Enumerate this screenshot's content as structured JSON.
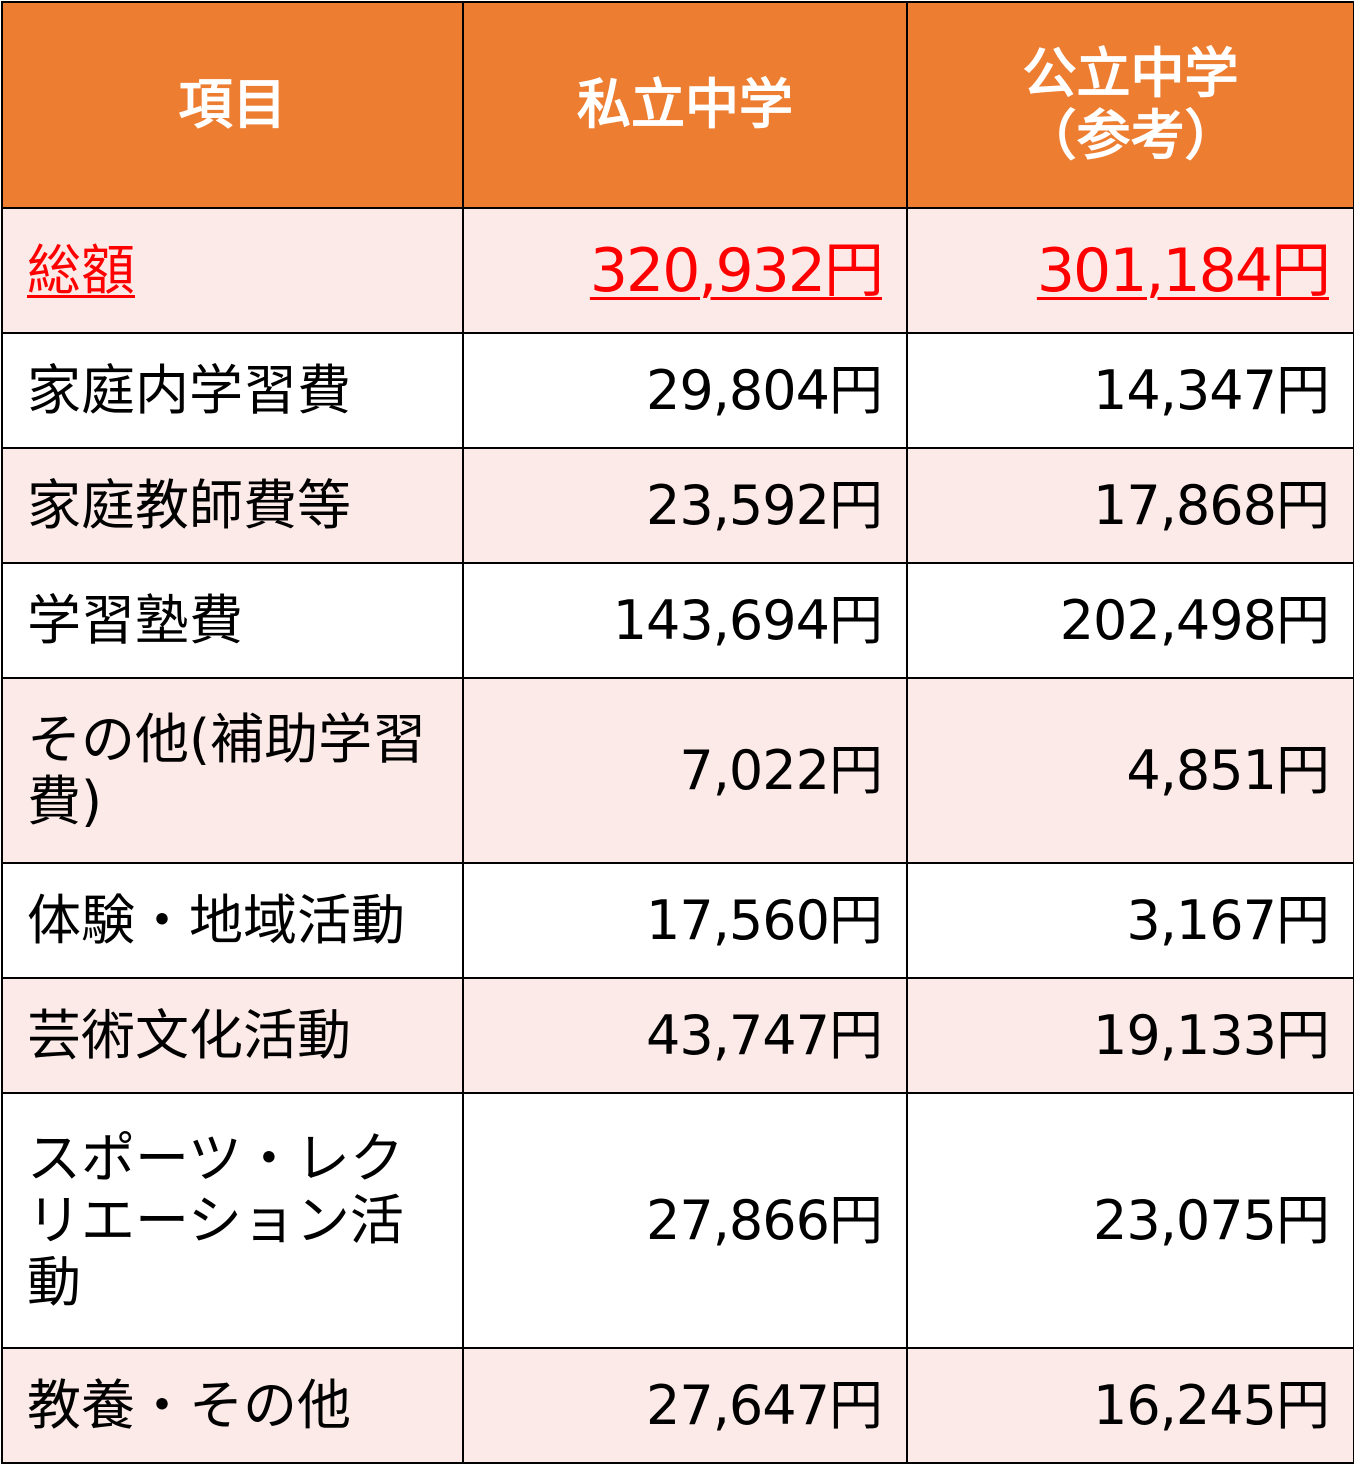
{
  "table": {
    "headers": {
      "item": "項目",
      "private": "私立中学",
      "public_line1": "公立中学",
      "public_line2": "（参考）"
    },
    "rows": [
      {
        "label": "総額",
        "private": "320,932円",
        "public": "301,184円",
        "emphasis": true
      },
      {
        "label": "家庭内学習費",
        "private": "29,804円",
        "public": "14,347円"
      },
      {
        "label": "家庭教師費等",
        "private": "23,592円",
        "public": "17,868円"
      },
      {
        "label": "学習塾費",
        "private": "143,694円",
        "public": "202,498円"
      },
      {
        "label": "その他(補助学習費)",
        "private": "7,022円",
        "public": "4,851円"
      },
      {
        "label": "体験・地域活動",
        "private": "17,560円",
        "public": "3,167円"
      },
      {
        "label": "芸術文化活動",
        "private": "43,747円",
        "public": "19,133円"
      },
      {
        "label": "スポーツ・レクリエーション活動",
        "private": "27,866円",
        "public": "23,075円"
      },
      {
        "label": "教養・その他",
        "private": "27,647円",
        "public": "16,245円"
      }
    ]
  },
  "colors": {
    "header_bg": "#ed7d31",
    "header_text": "#ffffff",
    "tint_row_bg": "#fbeae7",
    "total_text": "#ff0000",
    "border": "#000000"
  }
}
